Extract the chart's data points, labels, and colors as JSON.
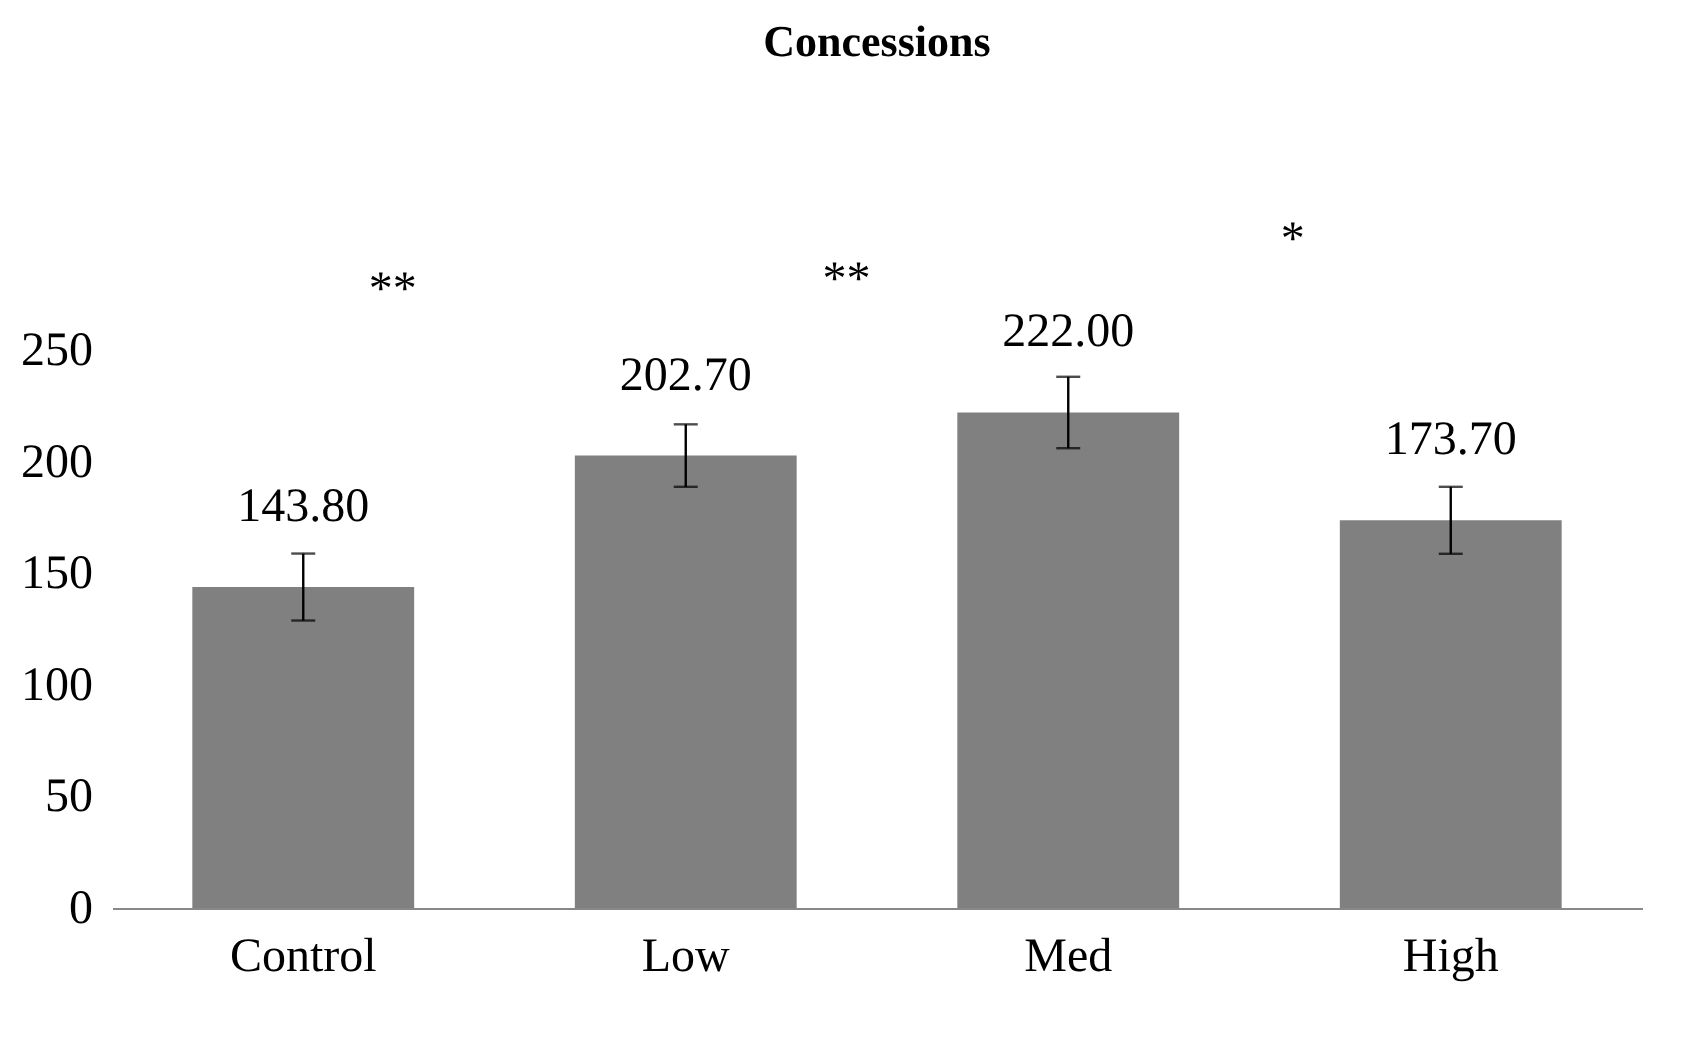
{
  "chart_data": {
    "type": "bar",
    "title": "Concessions",
    "categories": [
      "Control",
      "Low",
      "Med",
      "High"
    ],
    "values": [
      143.8,
      202.7,
      222.0,
      173.7
    ],
    "value_labels": [
      "143.80",
      "202.70",
      "222.00",
      "173.70"
    ],
    "errors": [
      15,
      14,
      16,
      15
    ],
    "color": "#808080",
    "ylim": [
      0,
      250
    ],
    "yticks": [
      0,
      50,
      100,
      150,
      200,
      250
    ],
    "grid": false,
    "annotations": [
      "**",
      "**",
      "*"
    ]
  }
}
